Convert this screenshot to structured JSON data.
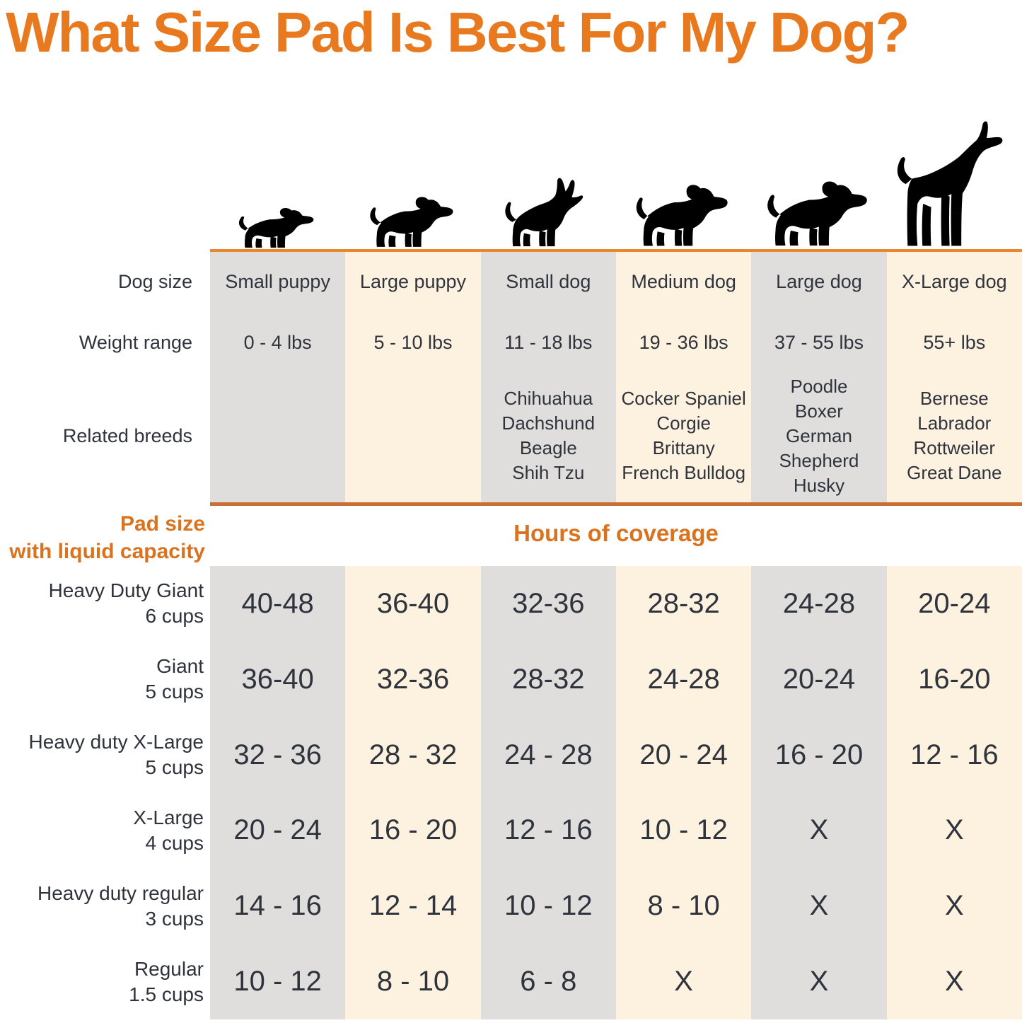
{
  "title": "What Size Pad Is Best For My Dog?",
  "colors": {
    "title_orange": "#e8791f",
    "section_orange": "#d9731f",
    "line_orange": "#e8872f",
    "divider_orange": "#c96f33",
    "dog_orange": "#e0802e",
    "col_gray": "#dfdedd",
    "col_cream": "#fdf2e0",
    "text": "#2f333c"
  },
  "chart_data": {
    "type": "table",
    "title": "What Size Pad Is Best For My Dog?",
    "labels": {
      "dog_size": "Dog size",
      "weight_range": "Weight range",
      "related_breeds": "Related breeds"
    },
    "columns": [
      {
        "dog_size": "Small puppy",
        "weight_range": "0 - 4 lbs",
        "breeds": [],
        "illustration": "small-puppy"
      },
      {
        "dog_size": "Large puppy",
        "weight_range": "5 - 10 lbs",
        "breeds": [],
        "illustration": "large-puppy"
      },
      {
        "dog_size": "Small dog",
        "weight_range": "11 - 18 lbs",
        "breeds": [
          "Chihuahua",
          "Dachshund",
          "Beagle",
          "Shih Tzu"
        ],
        "illustration": "small-dog"
      },
      {
        "dog_size": "Medium dog",
        "weight_range": "19 - 36 lbs",
        "breeds": [
          "Cocker Spaniel",
          "Corgie",
          "Brittany",
          "French Bulldog"
        ],
        "illustration": "medium-dog"
      },
      {
        "dog_size": "Large dog",
        "weight_range": "37 - 55 lbs",
        "breeds": [
          "Poodle",
          "Boxer",
          "German Shepherd",
          "Husky"
        ],
        "illustration": "large-dog"
      },
      {
        "dog_size": "X-Large dog",
        "weight_range": "55+ lbs",
        "breeds": [
          "Bernese",
          "Labrador",
          "Rottweiler",
          "Great Dane"
        ],
        "illustration": "x-large-dog"
      }
    ],
    "pad_section": {
      "label_line1": "Pad size",
      "label_line2": "with liquid capacity",
      "coverage_header": "Hours of coverage",
      "rows": [
        {
          "pad": "Heavy Duty Giant",
          "capacity": "6 cups",
          "hours": [
            "40-48",
            "36-40",
            "32-36",
            "28-32",
            "24-28",
            "20-24"
          ]
        },
        {
          "pad": "Giant",
          "capacity": "5 cups",
          "hours": [
            "36-40",
            "32-36",
            "28-32",
            "24-28",
            "20-24",
            "16-20"
          ]
        },
        {
          "pad": "Heavy duty X-Large",
          "capacity": "5 cups",
          "hours": [
            "32 - 36",
            "28 - 32",
            "24 - 28",
            "20 - 24",
            "16 - 20",
            "12 - 16"
          ]
        },
        {
          "pad": "X-Large",
          "capacity": "4 cups",
          "hours": [
            "20 - 24",
            "16 - 20",
            "12 - 16",
            "10 - 12",
            "X",
            "X"
          ]
        },
        {
          "pad": "Heavy duty regular",
          "capacity": "3 cups",
          "hours": [
            "14 - 16",
            "12 - 14",
            "10 - 12",
            "8 - 10",
            "X",
            "X"
          ]
        },
        {
          "pad": "Regular",
          "capacity": "1.5 cups",
          "hours": [
            "10 - 12",
            "8 - 10",
            "6 - 8",
            "X",
            "X",
            "X"
          ]
        }
      ]
    }
  }
}
